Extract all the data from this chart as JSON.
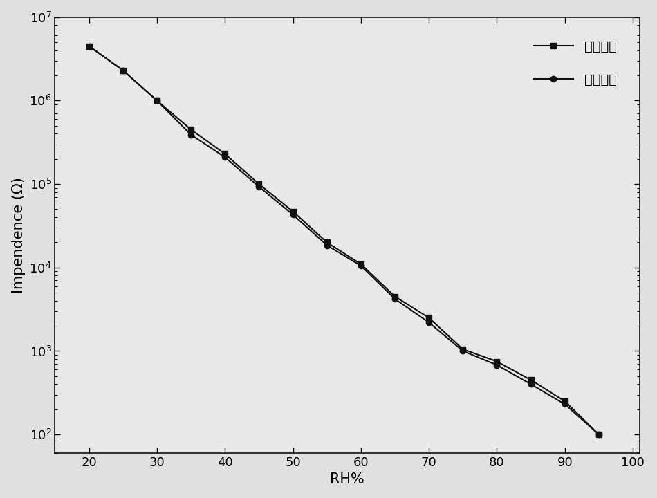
{
  "absorption_rh": [
    20,
    25,
    30,
    35,
    40,
    45,
    50,
    55,
    60,
    65,
    70,
    75,
    80,
    85,
    90,
    95
  ],
  "absorption_imp": [
    4500000,
    2300000,
    1000000,
    450000,
    230000,
    100000,
    47000,
    20000,
    11000,
    4500,
    2500,
    1050,
    750,
    450,
    250,
    100
  ],
  "desorption_rh": [
    20,
    25,
    30,
    35,
    40,
    45,
    50,
    55,
    60,
    65,
    70,
    75,
    80,
    85,
    90,
    95
  ],
  "desorption_imp": [
    4500000,
    2300000,
    1000000,
    390000,
    210000,
    93000,
    43000,
    18500,
    10500,
    4200,
    2200,
    1000,
    680,
    400,
    230,
    100
  ],
  "xlabel": "RH%",
  "ylabel": "Impendence (Ω)",
  "legend1": "吸湿过程",
  "legend2": "脱湿过程",
  "xlim": [
    15,
    101
  ],
  "ylim_low": 60,
  "ylim_high": 10000000,
  "xticks": [
    20,
    30,
    40,
    50,
    60,
    70,
    80,
    90,
    100
  ],
  "bg_color": "#e8e8e8",
  "line_color": "#111111",
  "marker_square": "s",
  "marker_circle": "o",
  "markersize": 6,
  "linewidth": 1.5,
  "fontsize_label": 15,
  "fontsize_tick": 13,
  "fontsize_legend": 14
}
